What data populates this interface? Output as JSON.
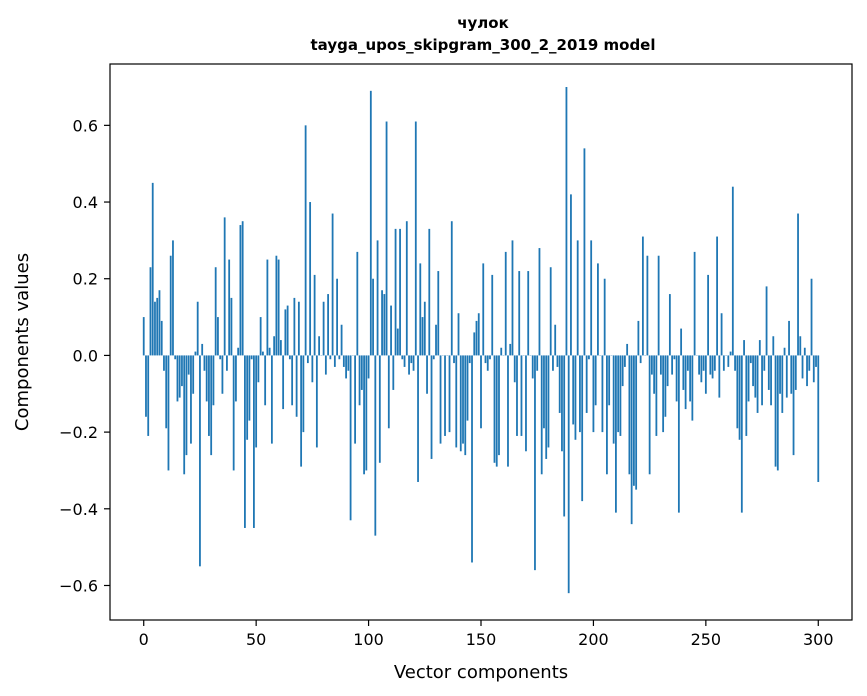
{
  "chart_data": {
    "type": "bar",
    "title_line1": "чулок",
    "title_line2": "tayga_upos_skipgram_300_2_2019 model",
    "xlabel": "Vector components",
    "ylabel": "Components values",
    "xlim": [
      -15,
      315
    ],
    "ylim": [
      -0.69,
      0.76
    ],
    "xticks": [
      0,
      50,
      100,
      150,
      200,
      250,
      300
    ],
    "xtick_labels": [
      "0",
      "50",
      "100",
      "150",
      "200",
      "250",
      "300"
    ],
    "yticks": [
      -0.6,
      -0.4,
      -0.2,
      0.0,
      0.2,
      0.4,
      0.6
    ],
    "ytick_labels": [
      "−0.6",
      "−0.4",
      "−0.2",
      "0.0",
      "0.2",
      "0.4",
      "0.6"
    ],
    "bar_color": "#1f77b4",
    "values": [
      0.1,
      -0.16,
      -0.21,
      0.23,
      0.45,
      0.14,
      0.15,
      0.17,
      0.09,
      -0.04,
      -0.19,
      -0.3,
      0.26,
      0.3,
      -0.01,
      -0.12,
      -0.11,
      -0.08,
      -0.31,
      -0.26,
      -0.05,
      -0.23,
      -0.1,
      0.01,
      0.14,
      -0.55,
      0.03,
      -0.04,
      -0.12,
      -0.21,
      -0.26,
      -0.13,
      0.23,
      0.1,
      -0.01,
      -0.1,
      0.36,
      -0.04,
      0.25,
      0.15,
      -0.3,
      -0.12,
      0.02,
      0.34,
      0.35,
      -0.45,
      -0.22,
      -0.17,
      -0.01,
      -0.45,
      -0.24,
      -0.07,
      0.1,
      0.01,
      -0.13,
      0.25,
      0.02,
      -0.23,
      0.05,
      0.26,
      0.25,
      0.04,
      -0.14,
      0.12,
      0.13,
      -0.01,
      -0.13,
      0.15,
      -0.16,
      0.14,
      -0.29,
      -0.2,
      0.6,
      -0.02,
      0.4,
      -0.07,
      0.21,
      -0.24,
      0.05,
      0.0,
      0.14,
      -0.05,
      0.16,
      -0.01,
      0.37,
      -0.03,
      0.2,
      -0.01,
      0.08,
      -0.03,
      -0.06,
      -0.04,
      -0.43,
      0.0,
      -0.23,
      0.27,
      -0.13,
      -0.09,
      -0.31,
      -0.3,
      -0.06,
      0.69,
      0.2,
      -0.47,
      0.3,
      -0.28,
      0.17,
      0.16,
      0.61,
      -0.19,
      0.13,
      -0.09,
      0.33,
      0.07,
      0.33,
      -0.01,
      -0.03,
      0.35,
      -0.05,
      -0.02,
      -0.04,
      0.61,
      -0.33,
      0.24,
      0.1,
      0.14,
      -0.1,
      0.33,
      -0.27,
      -0.01,
      0.08,
      0.22,
      -0.23,
      0.0,
      -0.21,
      0.0,
      -0.2,
      0.35,
      -0.02,
      -0.24,
      0.11,
      -0.25,
      -0.23,
      -0.26,
      -0.17,
      -0.02,
      -0.54,
      0.06,
      0.09,
      0.11,
      -0.19,
      0.24,
      -0.02,
      -0.04,
      -0.01,
      0.21,
      -0.28,
      -0.29,
      -0.26,
      0.02,
      0.0,
      0.27,
      -0.29,
      0.03,
      0.3,
      -0.07,
      -0.21,
      0.22,
      -0.21,
      0.0,
      -0.25,
      0.22,
      0.0,
      -0.06,
      -0.56,
      -0.04,
      0.28,
      -0.31,
      -0.19,
      -0.27,
      -0.24,
      0.23,
      -0.04,
      0.08,
      -0.03,
      -0.15,
      -0.25,
      -0.42,
      0.7,
      -0.62,
      0.42,
      -0.18,
      -0.22,
      0.3,
      -0.2,
      -0.38,
      0.54,
      -0.15,
      -0.01,
      0.3,
      -0.2,
      -0.13,
      0.24,
      0.0,
      -0.2,
      0.2,
      -0.31,
      -0.13,
      0.0,
      -0.23,
      -0.41,
      -0.2,
      -0.21,
      -0.08,
      -0.03,
      0.03,
      -0.31,
      -0.44,
      -0.34,
      -0.35,
      0.09,
      -0.02,
      0.31,
      0.0,
      0.26,
      -0.31,
      -0.05,
      -0.1,
      -0.21,
      0.26,
      -0.05,
      -0.2,
      -0.16,
      -0.08,
      0.16,
      -0.05,
      -0.01,
      -0.12,
      -0.41,
      0.07,
      -0.09,
      -0.14,
      -0.04,
      -0.12,
      -0.17,
      0.27,
      0.0,
      -0.05,
      -0.07,
      -0.04,
      -0.1,
      0.21,
      -0.05,
      -0.06,
      -0.04,
      0.31,
      -0.11,
      0.11,
      -0.04,
      0.0,
      -0.03,
      0.01,
      0.44,
      -0.04,
      -0.19,
      -0.22,
      -0.41,
      0.04,
      -0.21,
      -0.12,
      -0.02,
      -0.08,
      -0.11,
      -0.15,
      0.04,
      -0.13,
      -0.04,
      0.18,
      -0.09,
      -0.13,
      0.05,
      -0.29,
      -0.3,
      -0.1,
      -0.15,
      0.02,
      -0.11,
      0.09,
      -0.1,
      -0.26,
      -0.09,
      0.37,
      0.05,
      -0.06,
      0.02,
      -0.08,
      -0.04,
      0.2,
      -0.07,
      -0.03,
      -0.33
    ]
  }
}
